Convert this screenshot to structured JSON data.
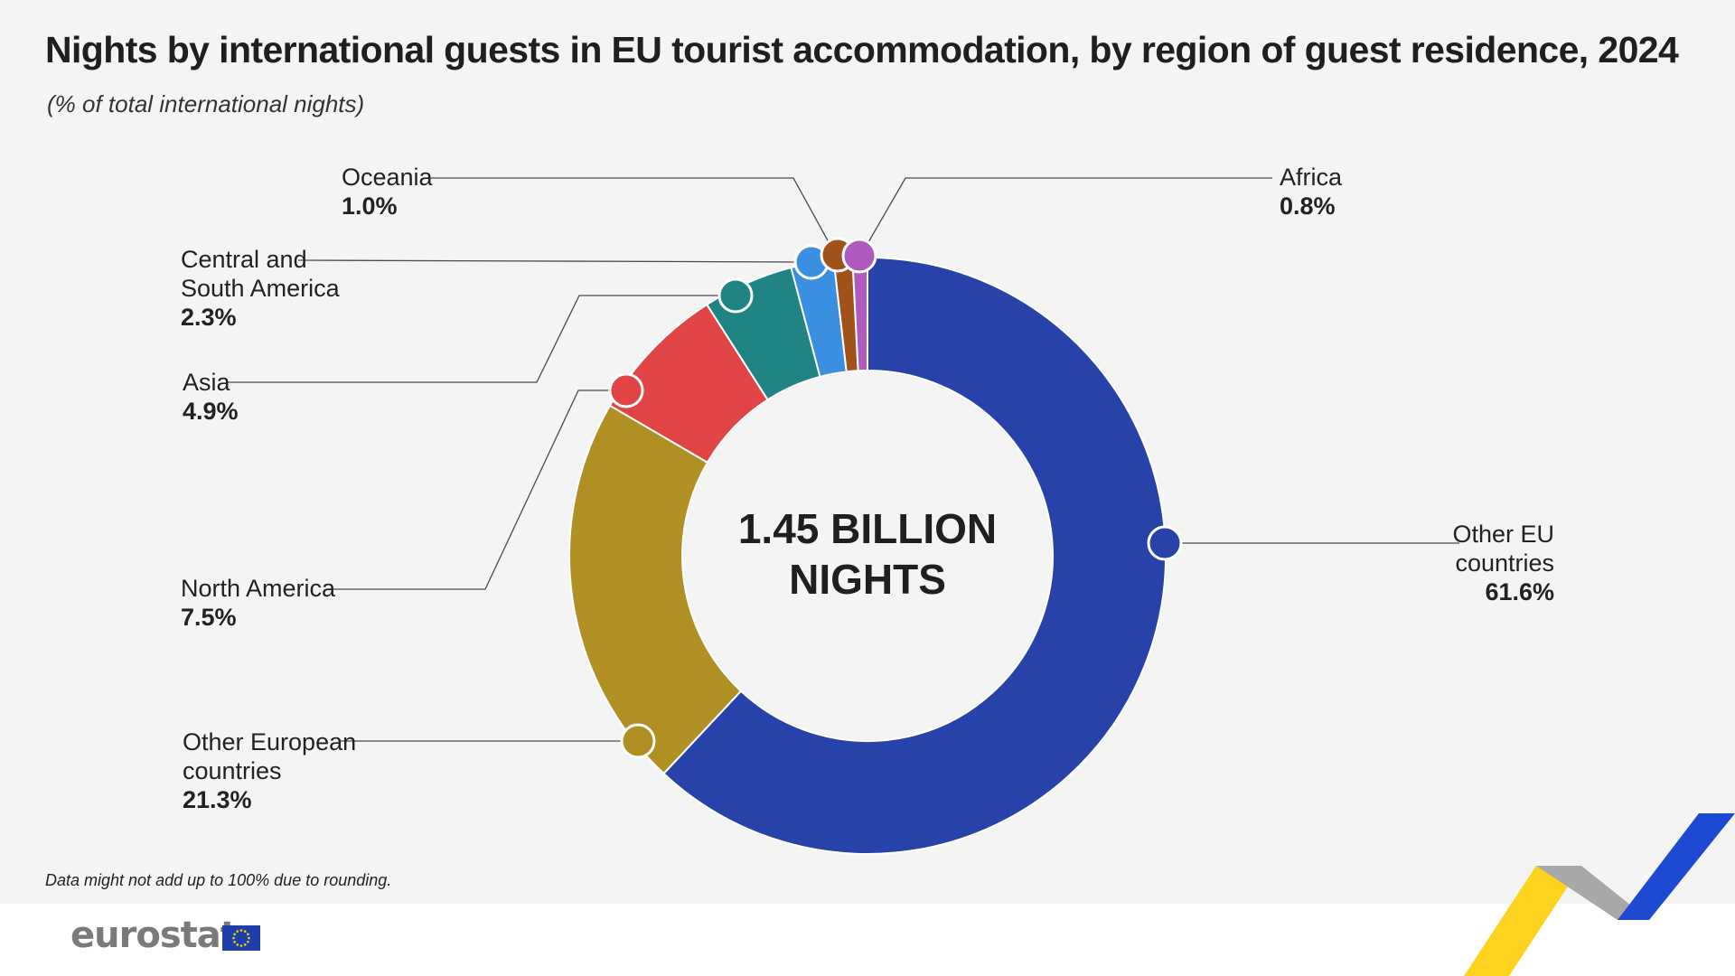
{
  "title": "Nights by international guests in EU tourist accommodation, by region of guest residence, 2024",
  "subtitle": "(% of total international nights)",
  "footnote": "Data might not add up to 100% due to rounding.",
  "logo_text": "eurostat",
  "chart_data": {
    "type": "pie",
    "donut": true,
    "center_label": [
      "1.45 BILLION",
      "NIGHTS"
    ],
    "slices": [
      {
        "label": "Other EU countries",
        "label_lines": [
          "Other EU",
          "countries"
        ],
        "value": 61.6,
        "value_text": "61.6%",
        "color": "#2742a8"
      },
      {
        "label": "Other European countries",
        "label_lines": [
          "Other European",
          "countries"
        ],
        "value": 21.3,
        "value_text": "21.3%",
        "color": "#b09022"
      },
      {
        "label": "North America",
        "label_lines": [
          "North America"
        ],
        "value": 7.5,
        "value_text": "7.5%",
        "color": "#e04444"
      },
      {
        "label": "Asia",
        "label_lines": [
          "Asia"
        ],
        "value": 4.9,
        "value_text": "4.9%",
        "color": "#208485"
      },
      {
        "label": "Central and South America",
        "label_lines": [
          "Central and",
          "South America"
        ],
        "value": 2.3,
        "value_text": "2.3%",
        "color": "#3b8fe0"
      },
      {
        "label": "Oceania",
        "label_lines": [
          "Oceania"
        ],
        "value": 1.0,
        "value_text": "1.0%",
        "color": "#a0521a"
      },
      {
        "label": "Africa",
        "label_lines": [
          "Africa"
        ],
        "value": 0.8,
        "value_text": "0.8%",
        "color": "#b05ac0"
      }
    ]
  }
}
